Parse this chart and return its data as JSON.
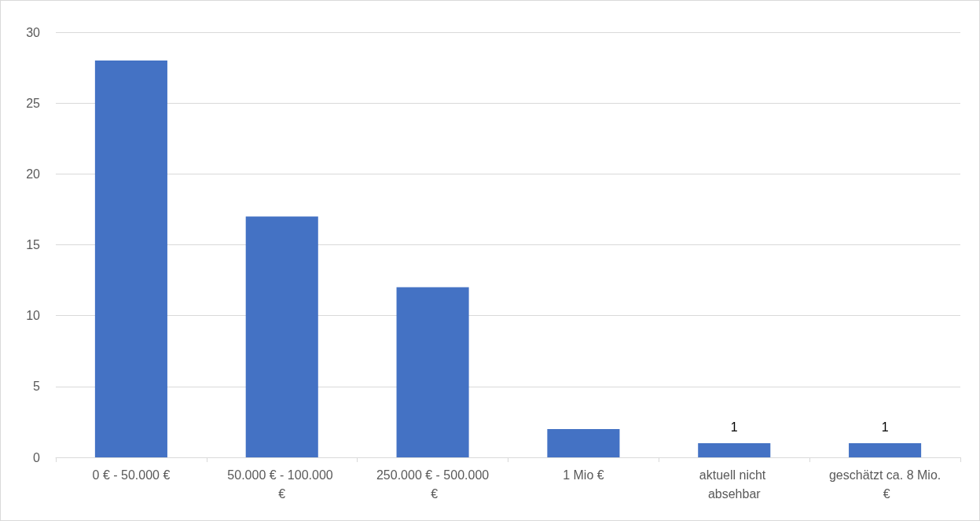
{
  "chart_data": {
    "type": "bar",
    "categories": [
      "0 € - 50.000 €",
      "50.000 € - 100.000 €",
      "250.000 € - 500.000 €",
      "1 Mio €",
      "aktuell nicht absehbar",
      "geschätzt ca. 8 Mio. €"
    ],
    "values": [
      28,
      17,
      12,
      2,
      1,
      1
    ],
    "value_labels": [
      null,
      null,
      null,
      null,
      "1",
      "1"
    ],
    "color": "#4472c4",
    "ylim": [
      0,
      30
    ],
    "yticks": [
      0,
      5,
      10,
      15,
      20,
      25,
      30
    ],
    "grid": "y"
  }
}
